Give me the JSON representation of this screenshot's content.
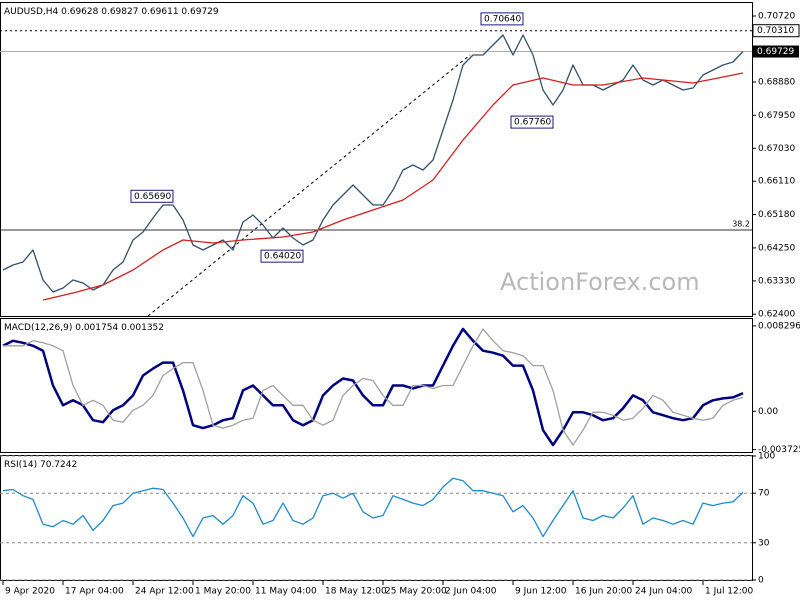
{
  "chart_data": [
    {
      "type": "line",
      "title": "AUDUSD,H4",
      "last_bar": [
        0.69628,
        0.69827,
        0.69611
      ],
      "xlim": [
        -0.3,
        74.9
      ],
      "xticks": [
        {
          "value": 0,
          "label": "9 Apr 2020"
        },
        {
          "value": 6,
          "label": "17 Apr 04:00"
        },
        {
          "value": 13,
          "label": "24 Apr 12:00"
        },
        {
          "value": 19,
          "label": "1 May 20:00"
        },
        {
          "value": 25,
          "label": "11 May 04:00"
        },
        {
          "value": 32,
          "label": "18 May 12:00"
        },
        {
          "value": 38,
          "label": "25 May 20:00"
        },
        {
          "value": 44,
          "label": "2 Jun 04:00"
        },
        {
          "value": 51,
          "label": "9 Jun 12:00"
        },
        {
          "value": 57,
          "label": "16 Jun 20:00"
        },
        {
          "value": 63,
          "label": "24 Jun 04:00"
        },
        {
          "value": 70,
          "label": "1 Jul 12:00"
        }
      ],
      "ylim": [
        0.6235,
        0.71083
      ],
      "yticks": [
        {
          "value": 0.7072,
          "label": "0.70720"
        },
        {
          "value": 0.6888,
          "label": "0.68880"
        },
        {
          "value": 0.6795,
          "label": "0.67950"
        },
        {
          "value": 0.6703,
          "label": "0.67030"
        },
        {
          "value": 0.6611,
          "label": "0.66110"
        },
        {
          "value": 0.6518,
          "label": "0.65180"
        },
        {
          "value": 0.6425,
          "label": "0.64250"
        },
        {
          "value": 0.6333,
          "label": "0.63330"
        },
        {
          "value": 0.624,
          "label": "0.62400"
        }
      ],
      "series": [
        {
          "color": "#34506b",
          "values": [
            0.63633,
            0.63773,
            0.63857,
            0.64191,
            0.63354,
            0.6302,
            0.63131,
            0.63354,
            0.63271,
            0.63075,
            0.63215,
            0.63633,
            0.63857,
            0.6447,
            0.64694,
            0.65084,
            0.65447,
            0.65447,
            0.65028,
            0.64331,
            0.64191,
            0.64331,
            0.6447,
            0.64191,
            0.64973,
            0.65168,
            0.64889,
            0.64526,
            0.64805,
            0.64526,
            0.64331,
            0.6447,
            0.65028,
            0.65447,
            0.65726,
            0.66005,
            0.65726,
            0.65447,
            0.65447,
            0.65865,
            0.66423,
            0.66563,
            0.66423,
            0.66702,
            0.67539,
            0.68376,
            0.69353,
            0.69632,
            0.69632,
            0.69911,
            0.7019,
            0.69632,
            0.7019,
            0.69632,
            0.68655,
            0.68237,
            0.68655,
            0.69353,
            0.68795,
            0.68795,
            0.68655,
            0.68795,
            0.68934,
            0.69353,
            0.68934,
            0.68795,
            0.68934,
            0.68795,
            0.68655,
            0.68711,
            0.69074,
            0.69214,
            0.69353,
            0.69437,
            0.69729
          ]
        },
        {
          "color": "#d42020",
          "x": [
            4,
            7,
            10,
            13,
            16,
            18,
            21,
            24,
            28,
            31,
            34,
            37,
            40,
            43,
            46,
            49,
            51,
            54,
            57,
            60,
            64,
            69,
            74
          ],
          "values": [
            0.62796,
            0.62992,
            0.63215,
            0.63633,
            0.64191,
            0.6447,
            0.64387,
            0.6447,
            0.64554,
            0.64694,
            0.65028,
            0.65307,
            0.65586,
            0.66144,
            0.6726,
            0.68237,
            0.68795,
            0.6899,
            0.68795,
            0.68795,
            0.6899,
            0.68851,
            0.6913
          ]
        }
      ],
      "levels": [
        {
          "value": 0.7031,
          "label": "0.70310"
        }
      ],
      "fib_level": {
        "value": 0.6475,
        "label": "38.2"
      },
      "annotations": [
        {
          "x": 52,
          "value": 0.7064,
          "label": "0.70640"
        },
        {
          "x": 17,
          "value": 0.6569,
          "label": "0.65690"
        },
        {
          "x": 30,
          "value": 0.6402,
          "label": "0.64020"
        },
        {
          "x": 55,
          "value": 0.6776,
          "label": "0.67760"
        }
      ],
      "watermark": "ActionForex.com"
    },
    {
      "type": "line",
      "title": "MACD(12,26,9)",
      "ylim": [
        -0.00396,
        0.00897
      ],
      "yticks": [
        0.008296,
        {
          "value": 0,
          "label": "0.00"
        },
        -0.003725
      ],
      "grid": false,
      "series": [
        {
          "color": "#000080",
          "values": [
            0.006369,
            0.006852,
            0.006659,
            0.006369,
            0.005887,
            0.002509,
            0.000579,
            0.001062,
            0.000579,
            -0.000869,
            -0.001062,
            9.7e-05,
            0.000579,
            0.001544,
            0.003474,
            0.00415,
            0.004729,
            0.004729,
            0.002027,
            -0.001351,
            -0.001641,
            -0.001351,
            -0.000869,
            -0.000676,
            0.002027,
            0.002509,
            0.001544,
            0.000579,
            0.000579,
            -0.000869,
            -0.001351,
            -0.000869,
            0.001544,
            0.002509,
            0.003185,
            0.002992,
            0.001544,
            0.000579,
            0.000579,
            0.002509,
            0.002509,
            0.00222,
            0.002509,
            0.002509,
            0.004439,
            0.006369,
            0.00801,
            0.006852,
            0.005887,
            0.005694,
            0.005404,
            0.004439,
            0.004439,
            0.002027,
            -0.001834,
            -0.003281,
            -0.001834,
            -9.7e-05,
            -9.7e-05,
            -0.000386,
            -0.000869,
            -0.000676,
            0.00029,
            0.001544,
            0.001062,
            -9.7e-05,
            -0.000386,
            -0.000676,
            -0.000869,
            -0.000676,
            0.000579,
            0.001062,
            0.001255,
            0.001351,
            0.001754
          ]
        },
        {
          "color": "#a0a0a0",
          "values": [
            0.006369,
            0.006369,
            0.006369,
            0.006852,
            0.006659,
            0.006369,
            0.005887,
            0.002509,
            0.000579,
            0.001062,
            0.000579,
            -0.000869,
            -0.001062,
            9.7e-05,
            0.000579,
            0.001544,
            0.003474,
            0.00415,
            0.004729,
            0.004729,
            0.002027,
            -0.001351,
            -0.001641,
            -0.001351,
            -0.000869,
            -0.000676,
            0.002027,
            0.002509,
            0.001544,
            0.000579,
            0.000579,
            -0.000869,
            -0.001351,
            -0.000869,
            0.001544,
            0.002509,
            0.003185,
            0.002992,
            0.001544,
            0.000579,
            0.000579,
            0.002509,
            0.002509,
            0.00222,
            0.002509,
            0.002509,
            0.004439,
            0.006369,
            0.00801,
            0.006852,
            0.005887,
            0.005694,
            0.005404,
            0.004439,
            0.004439,
            0.002027,
            -0.001834,
            -0.003281,
            -0.001834,
            -9.7e-05,
            -9.7e-05,
            -0.000386,
            -0.000869,
            -0.000676,
            0.00029,
            0.001544,
            0.001062,
            -9.7e-05,
            -0.000386,
            -0.000676,
            -0.000869,
            -0.000676,
            0.000579,
            0.001062,
            0.001352
          ]
        }
      ]
    },
    {
      "type": "line",
      "title": "RSI(14)",
      "ylim": [
        0,
        100
      ],
      "yticks": [
        100,
        70,
        30,
        0
      ],
      "grid": true,
      "series": [
        {
          "color": "#1e8bc8",
          "values": [
            72,
            73,
            68,
            65,
            45,
            43,
            48,
            45,
            52,
            40,
            48,
            60,
            62,
            70,
            72,
            74,
            73,
            62,
            50,
            35,
            50,
            52,
            45,
            52,
            68,
            62,
            45,
            48,
            62,
            48,
            45,
            50,
            68,
            70,
            66,
            70,
            55,
            50,
            52,
            68,
            65,
            62,
            60,
            65,
            75,
            82,
            80,
            72,
            72,
            70,
            68,
            55,
            60,
            50,
            35,
            48,
            60,
            72,
            50,
            48,
            52,
            50,
            58,
            68,
            45,
            50,
            48,
            45,
            48,
            45,
            62,
            60,
            62,
            63,
            70.7242
          ]
        }
      ]
    }
  ]
}
